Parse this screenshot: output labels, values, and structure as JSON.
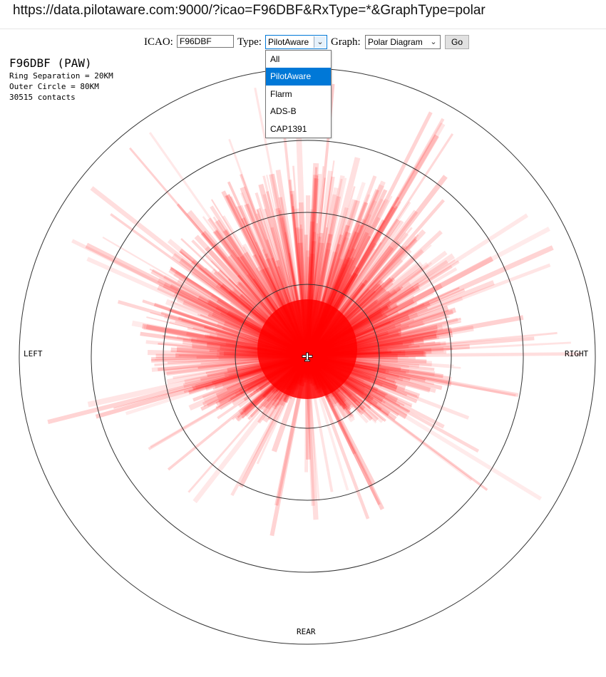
{
  "browser": {
    "url": "https://data.pilotaware.com:9000/?icao=F96DBF&RxType=*&GraphType=polar"
  },
  "form": {
    "icao_label": "ICAO:",
    "icao_value": "F96DBF",
    "type_label": "Type:",
    "type_selected": "PilotAware",
    "type_options": [
      "All",
      "PilotAware",
      "Flarm",
      "ADS-B",
      "CAP1391"
    ],
    "graph_label": "Graph:",
    "graph_selected": "Polar Diagram",
    "go_label": "Go"
  },
  "info": {
    "title": "F96DBF (PAW)",
    "ring_separation": "Ring Separation = 20KM",
    "outer_circle": "Outer Circle = 80KM",
    "contacts": "30515 contacts"
  },
  "polar": {
    "labels": {
      "left": "LEFT",
      "right": "RIGHT",
      "rear": "REAR"
    },
    "rings_km": [
      20,
      40,
      60,
      80
    ],
    "max_km": 80,
    "plot_color": "#ff0000",
    "aircraft_icon": "aircraft-icon"
  }
}
